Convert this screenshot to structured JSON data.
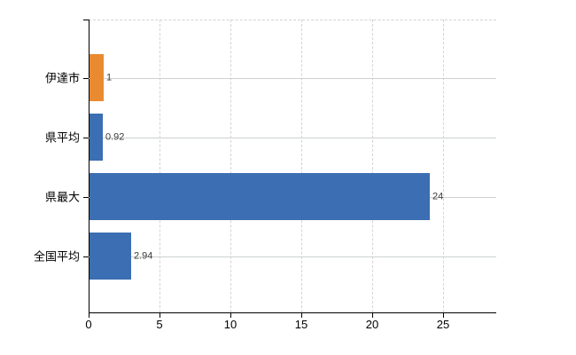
{
  "chart_data": {
    "type": "bar",
    "orientation": "horizontal",
    "title": "",
    "xlabel": "",
    "ylabel": "",
    "categories": [
      "伊達市",
      "県平均",
      "県最大",
      "全国平均"
    ],
    "values": [
      1,
      0.92,
      24,
      2.94
    ],
    "value_labels": [
      "1",
      "0.92",
      "24",
      "2.94"
    ],
    "bar_colors": [
      "#ea8a30",
      "#3b6eb2",
      "#3b6eb2",
      "#3b6eb2"
    ],
    "x_tick_labels": [
      "0",
      "5",
      "10",
      "15",
      "20",
      "25"
    ],
    "x_tick_values": [
      0,
      5,
      10,
      15,
      20,
      25
    ],
    "xlim": [
      0,
      28.75
    ],
    "grid": true,
    "legend": false
  },
  "colors": {
    "highlight_bar": "#ea8a30",
    "default_bar": "#3b6eb2",
    "axis": "#000000",
    "grid_vertical": "#d6d2d6",
    "grid_horizontal": "#ccd3cb",
    "value_label_text": "#3a3a3a",
    "background": "#ffffff"
  }
}
